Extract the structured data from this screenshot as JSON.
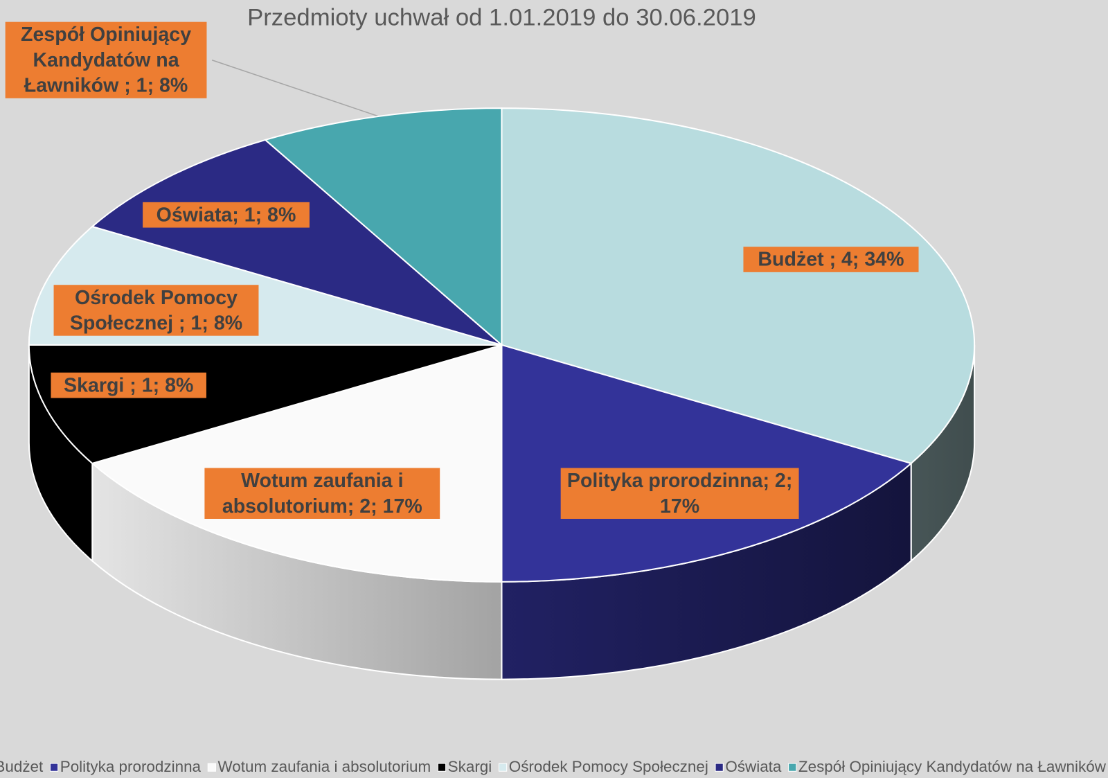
{
  "chart_data": {
    "type": "pie",
    "title": "Przedmioty uchwał od 1.01.2019 do 30.06.2019",
    "categories": [
      "Budżet",
      "Polityka prorodzinna",
      "Wotum zaufania i absolutorium",
      "Skargi",
      "Ośrodek Pomocy Społecznej",
      "Oświata",
      "Zespół Opiniujący Kandydatów na Ławników"
    ],
    "values": [
      4,
      2,
      2,
      1,
      1,
      1,
      1
    ],
    "value_labels": [
      "Budżet ; 4; 34%",
      "Polityka prorodzinna; 2; 17%",
      "Wotum zaufania i absolutorium; 2; 17%",
      "Skargi ; 1; 8%",
      "Ośrodek Pomocy Społecznej ; 1; 8%",
      "Oświata; 1; 8%",
      "Zespół Opiniujący Kandydatów na Ławników ; 1; 8%"
    ],
    "colors": [
      "#b8dcdf",
      "#333399",
      "#fafafa",
      "#000000",
      "#d6eaee",
      "#2b2a84",
      "#48a7ae"
    ],
    "legend": "bottom"
  }
}
